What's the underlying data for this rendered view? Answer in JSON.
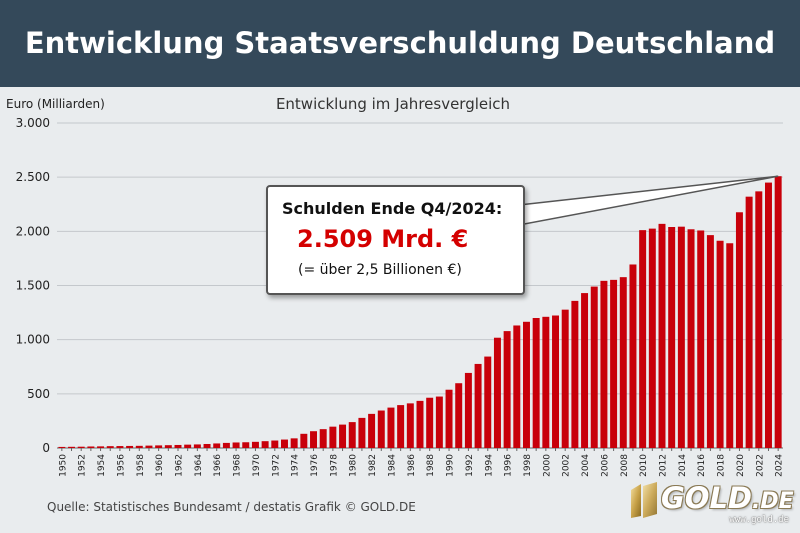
{
  "header": {
    "title": "Entwicklung Staatsverschuldung Deutschland"
  },
  "chart_data": {
    "type": "bar",
    "subtitle": "Entwicklung im Jahresvergleich",
    "ylabel": "Euro (Milliarden)",
    "ylim": [
      0,
      3000
    ],
    "yticks": [
      0,
      500,
      1000,
      1500,
      2000,
      2500,
      3000
    ],
    "ytick_labels": [
      "0",
      "500",
      "1.000",
      "1.500",
      "2.000",
      "2.500",
      "3.000"
    ],
    "grid": true,
    "bar_color": "#c8000a",
    "categories": [
      1950,
      1951,
      1952,
      1953,
      1954,
      1955,
      1956,
      1957,
      1958,
      1959,
      1960,
      1961,
      1962,
      1963,
      1964,
      1965,
      1966,
      1967,
      1968,
      1969,
      1970,
      1971,
      1972,
      1973,
      1974,
      1975,
      1976,
      1977,
      1978,
      1979,
      1980,
      1981,
      1982,
      1983,
      1984,
      1985,
      1986,
      1987,
      1988,
      1989,
      1990,
      1991,
      1992,
      1993,
      1994,
      1995,
      1996,
      1997,
      1998,
      1999,
      2000,
      2001,
      2002,
      2003,
      2004,
      2005,
      2006,
      2007,
      2008,
      2009,
      2010,
      2011,
      2012,
      2013,
      2014,
      2015,
      2016,
      2017,
      2018,
      2019,
      2020,
      2021,
      2022,
      2023,
      2024
    ],
    "values": [
      10,
      11,
      12,
      14,
      15,
      17,
      18,
      19,
      20,
      22,
      24,
      26,
      28,
      31,
      33,
      37,
      42,
      47,
      51,
      53,
      57,
      63,
      69,
      78,
      89,
      131,
      155,
      174,
      197,
      216,
      239,
      278,
      315,
      346,
      373,
      396,
      412,
      435,
      464,
      475,
      538,
      598,
      693,
      776,
      844,
      1018,
      1079,
      1131,
      1165,
      1200,
      1211,
      1223,
      1277,
      1358,
      1430,
      1490,
      1543,
      1552,
      1577,
      1694,
      2011,
      2025,
      2069,
      2040,
      2043,
      2019,
      2008,
      1965,
      1913,
      1890,
      2176,
      2320,
      2369,
      2450,
      2509
    ],
    "xtick_labels": [
      "1950",
      "1952",
      "1954",
      "1956",
      "1958",
      "1960",
      "1962",
      "1964",
      "1966",
      "1968",
      "1970",
      "1972",
      "1974",
      "1976",
      "1978",
      "1980",
      "1982",
      "1984",
      "1986",
      "1988",
      "1990",
      "1992",
      "1994",
      "1996",
      "1998",
      "2000",
      "2002",
      "2004",
      "2006",
      "2008",
      "2010",
      "2012",
      "2014",
      "2016",
      "2018",
      "2020",
      "2022",
      "2024"
    ],
    "annotation": {
      "title": "Schulden Ende Q4/2024:",
      "value": "2.509 Mrd. €",
      "note": "(= über 2,5 Billionen €)",
      "target_year": 2024
    }
  },
  "source": "Quelle: Statistisches Bundesamt / destatis Grafik © GOLD.DE",
  "logo": {
    "text": "GOLD",
    "tld": ".DE",
    "url": "www.gold.de"
  },
  "colors": {
    "header_bg": "#34495a",
    "background": "#e9ecee",
    "bar": "#c8000a",
    "highlight": "#d40000"
  }
}
